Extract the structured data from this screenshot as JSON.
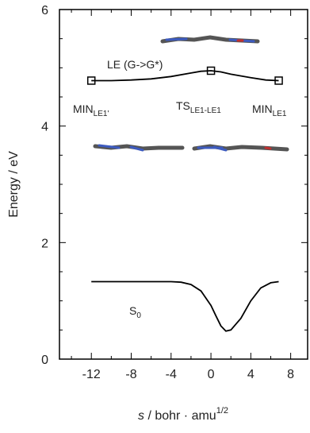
{
  "chart_data": {
    "type": "line",
    "y_label": "Energy / eV",
    "x_label": {
      "italic": "s",
      "text": " / bohr · amu",
      "sup": "1/2"
    },
    "xlim": [
      -15.2,
      9.7
    ],
    "xticks": [
      -12,
      -8,
      -4,
      0,
      4,
      8
    ],
    "ylim": [
      0,
      6
    ],
    "yticks": [
      0,
      2,
      4,
      6
    ],
    "series": [
      {
        "color": "#000000",
        "x": [
          -12,
          -10,
          -8,
          -6,
          -4,
          -2,
          -1,
          0,
          1,
          2,
          4,
          5.5,
          6.8
        ],
        "values": [
          4.78,
          4.78,
          4.79,
          4.81,
          4.85,
          4.91,
          4.94,
          4.95,
          4.93,
          4.89,
          4.83,
          4.79,
          4.78
        ]
      },
      {
        "color": "#000000",
        "marker": "square",
        "x": [
          -12,
          0,
          6.8
        ],
        "values": [
          4.78,
          4.95,
          4.78
        ]
      },
      {
        "color": "#000000",
        "x": [
          -12,
          -6,
          -4,
          -3,
          -2,
          -1,
          0,
          0.5,
          1,
          1.5,
          2,
          3,
          4,
          5,
          6,
          6.8
        ],
        "values": [
          1.33,
          1.33,
          1.33,
          1.32,
          1.28,
          1.17,
          0.92,
          0.74,
          0.57,
          0.48,
          0.5,
          0.7,
          1.0,
          1.22,
          1.31,
          1.33
        ]
      }
    ],
    "annotations": [
      {
        "text": "LE (G->G*)"
      },
      {
        "text": "MIN",
        "sub": "LE1'"
      },
      {
        "text": "TS",
        "sub": "LE1-LE1"
      },
      {
        "text": "MIN",
        "sub": "LE1"
      },
      {
        "text": "S",
        "sub": "0"
      }
    ]
  }
}
